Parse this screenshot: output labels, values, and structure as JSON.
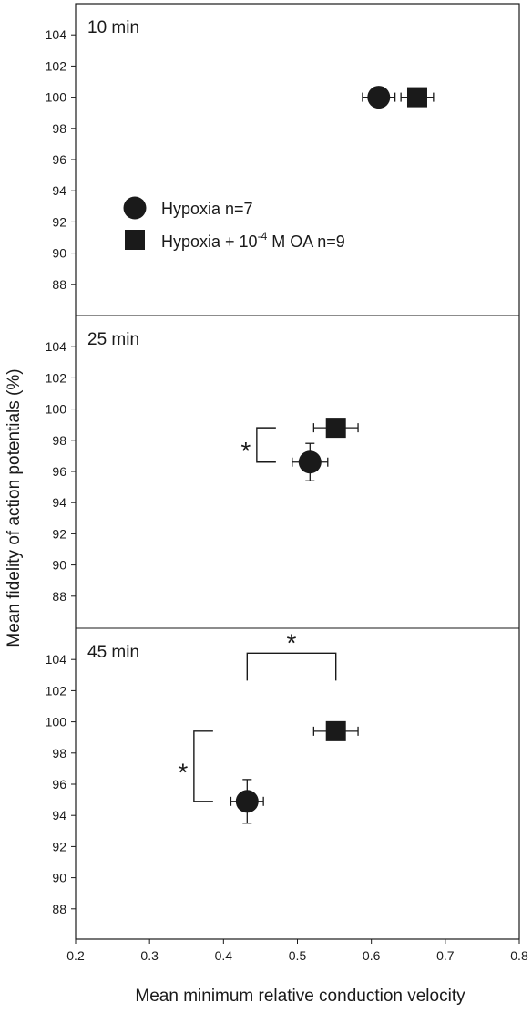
{
  "chart_data": {
    "type": "scatter",
    "xlabel": "Mean minimum relative conduction velocity",
    "ylabel": "Mean fidelity of action potentials (%)",
    "xlim": [
      0.2,
      0.8
    ],
    "x_ticks": [
      "0.2",
      "0.3",
      "0.4",
      "0.5",
      "0.6",
      "0.7",
      "0.8"
    ],
    "x_tick_values": [
      0.2,
      0.3,
      0.4,
      0.5,
      0.6,
      0.7,
      0.8
    ],
    "ylim": [
      86,
      106
    ],
    "y_ticks": [
      "88",
      "90",
      "92",
      "94",
      "96",
      "98",
      "100",
      "102",
      "104"
    ],
    "y_tick_values": [
      88,
      90,
      92,
      94,
      96,
      98,
      100,
      102,
      104
    ],
    "grid": false,
    "legend": {
      "placement": "upper-left",
      "entries": [
        {
          "marker": "circle",
          "label": "Hypoxia  n=7"
        },
        {
          "marker": "square",
          "label_prefix": "Hypoxia + 10",
          "label_sup": "-4",
          "label_suffix": " M OA  n=9"
        }
      ]
    },
    "panels": [
      {
        "label": "10 min",
        "points": [
          {
            "series": "hypoxia",
            "marker": "circle",
            "x": 0.61,
            "y": 100.0,
            "xerr": 0.022,
            "yerr": 0.0
          },
          {
            "series": "oa",
            "marker": "square",
            "x": 0.662,
            "y": 100.0,
            "xerr": 0.022,
            "yerr": 0.0
          }
        ],
        "brackets": []
      },
      {
        "label": "25 min",
        "points": [
          {
            "series": "hypoxia",
            "marker": "circle",
            "x": 0.517,
            "y": 96.6,
            "xerr": 0.024,
            "yerr": 1.2
          },
          {
            "series": "oa",
            "marker": "square",
            "x": 0.552,
            "y": 98.8,
            "xerr": 0.03,
            "yerr": 0.0
          }
        ],
        "brackets": [
          {
            "orientation": "vertical",
            "y1": 96.6,
            "y2": 98.8,
            "x": 0.445,
            "label": "*"
          }
        ]
      },
      {
        "label": "45 min",
        "points": [
          {
            "series": "hypoxia",
            "marker": "circle",
            "x": 0.432,
            "y": 94.9,
            "xerr": 0.022,
            "yerr": 1.4
          },
          {
            "series": "oa",
            "marker": "square",
            "x": 0.552,
            "y": 99.4,
            "xerr": 0.03,
            "yerr": 0.0
          }
        ],
        "brackets": [
          {
            "orientation": "vertical",
            "y1": 94.9,
            "y2": 99.4,
            "x": 0.36,
            "label": "*"
          },
          {
            "orientation": "horizontal",
            "x1": 0.432,
            "x2": 0.552,
            "y": 104.4,
            "label": "*"
          }
        ]
      }
    ]
  }
}
